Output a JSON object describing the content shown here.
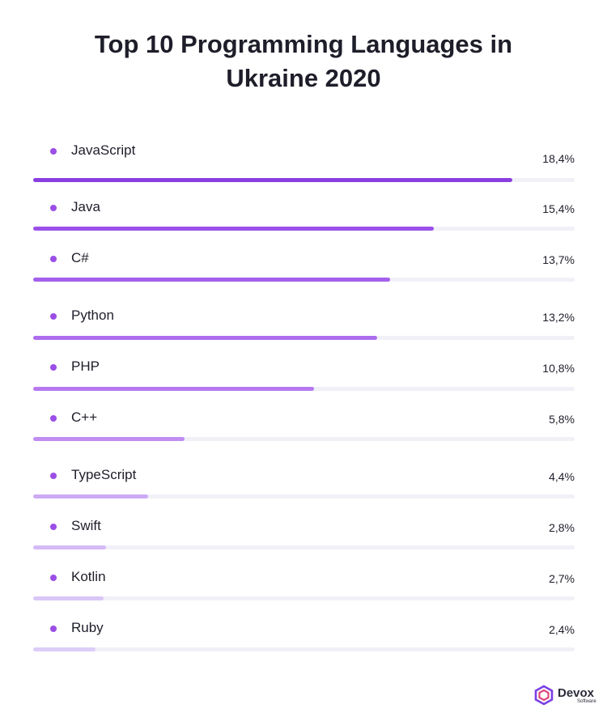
{
  "title_line1": "Top 10 Programming Languages in",
  "title_line2": "Ukraine 2020",
  "colors": {
    "bullet": "#9b4ee6",
    "track": "#f2f0f7",
    "bar_gradient": [
      "#8a3ee0",
      "#9a50e8",
      "#a460ec",
      "#ad6cee",
      "#b679f0",
      "#c18df2",
      "#ccaaf5",
      "#d4baf6",
      "#dac6f7",
      "#ddcdf7"
    ]
  },
  "chart_data": {
    "type": "bar",
    "orientation": "horizontal",
    "title": "Top 10 Programming Languages in Ukraine 2020",
    "categories": [
      "JavaScript",
      "Java",
      "C#",
      "Python",
      "PHP",
      "C++",
      "TypeScript",
      "Swift",
      "Kotlin",
      "Ruby"
    ],
    "values": [
      18.4,
      15.4,
      13.7,
      13.2,
      10.8,
      5.8,
      4.4,
      2.8,
      2.7,
      2.4
    ],
    "value_labels": [
      "18,4%",
      "15,4%",
      "13,7%",
      "13,2%",
      "10,8%",
      "5,8%",
      "4,4%",
      "2,8%",
      "2,7%",
      "2,4%"
    ],
    "unit": "%",
    "xlim": [
      0,
      20.8
    ],
    "grid": false,
    "legend": "none"
  },
  "logo": {
    "name": "Devox",
    "sub": "Software"
  }
}
